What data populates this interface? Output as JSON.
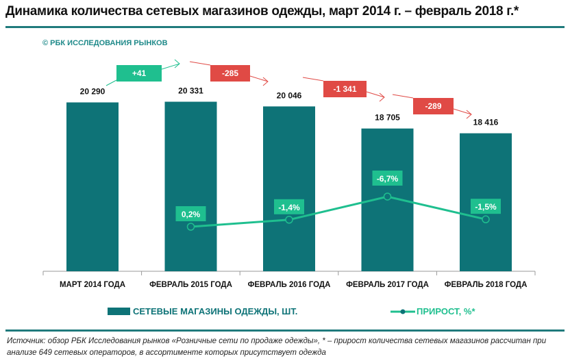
{
  "title": "Динамика количества сетевых магазинов одежды, март 2014 г. – февраль 2018 г.*",
  "copyright": "© РБК ИССЛЕДОВАНИЯ РЫНКОВ",
  "chart_data": {
    "type": "bar+line",
    "categories": [
      "МАРТ 2014 ГОДА",
      "ФЕВРАЛЬ 2015 ГОДА",
      "ФЕВРАЛЬ 2016 ГОДА",
      "ФЕВРАЛЬ 2017 ГОДА",
      "ФЕВРАЛЬ 2018 ГОДА"
    ],
    "series": [
      {
        "name": "СЕТЕВЫЕ МАГАЗИНЫ ОДЕЖДЫ, ШТ.",
        "type": "bar",
        "values": [
          20290,
          20331,
          20046,
          18705,
          18416
        ],
        "labels": [
          "20 290",
          "20 331",
          "20 046",
          "18 705",
          "18 416"
        ],
        "color": "#0e7377"
      },
      {
        "name": "ПРИРОСТ, %*",
        "type": "line",
        "values": [
          null,
          0.2,
          -1.4,
          -6.7,
          -1.5
        ],
        "labels": [
          "",
          "0,2%",
          "-1,4%",
          "-6,7%",
          "-1,5%"
        ],
        "color": "#1fbf8f"
      }
    ],
    "changes": [
      {
        "label": "+41",
        "value": 41,
        "color": "#1fbf8f"
      },
      {
        "label": "-285",
        "value": -285,
        "color": "#e04a45"
      },
      {
        "label": "-1 341",
        "value": -1341,
        "color": "#e04a45"
      },
      {
        "label": "-289",
        "value": -289,
        "color": "#e04a45"
      }
    ],
    "grid": false,
    "legend": "bottom"
  },
  "source": "Источник: обзор РБК Исследования рынков «Розничные сети по продаже одежды», * – прирост количества сетевых магазинов рассчитан при анализе 649 сетевых операторов, в ассортименте которых присутствует одежда"
}
